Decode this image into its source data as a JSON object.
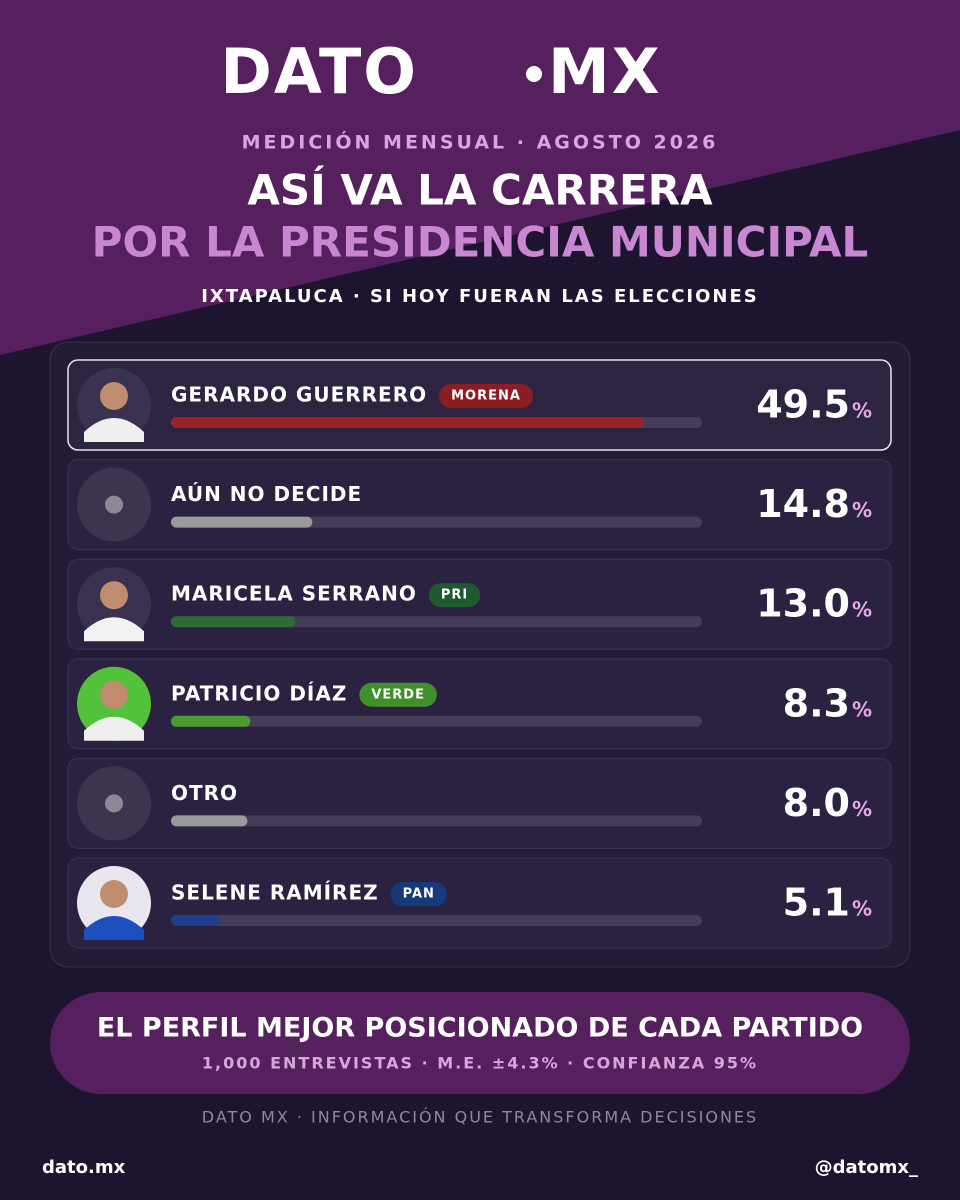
{
  "header": {
    "logo_left": "DATO",
    "logo_right": "MX",
    "subtitle": "MEDICIÓN MENSUAL · AGOSTO 2026",
    "title_line1": "ASÍ VA LA CARRERA",
    "title_line2": "POR LA PRESIDENCIA MUNICIPAL",
    "tagline": "IXTAPALUCA · SI HOY FUERAN LAS ELECCIONES"
  },
  "chart_data": {
    "type": "bar",
    "categories": [
      "GERARDO GUERRERO",
      "AÚN NO DECIDE",
      "MARICELA SERRANO",
      "PATRICIO DÍAZ",
      "OTRO",
      "SELENE RAMÍREZ"
    ],
    "parties": [
      "MORENA",
      null,
      "PRI",
      "VERDE",
      null,
      "PAN"
    ],
    "party_colors": [
      "#8c1d22",
      null,
      "#1f5a2f",
      "#3f8f2b",
      null,
      "#15397a"
    ],
    "values": [
      49.5,
      14.8,
      13.0,
      8.3,
      8.0,
      5.1
    ],
    "value_labels": [
      "49.5",
      "14.8",
      "13.0",
      "8.3",
      "8.0",
      "5.1"
    ],
    "unit": "%",
    "colors": [
      "#9b2226",
      "#9a9a9a",
      "#2d6b37",
      "#4b9c30",
      "#9a9a9a",
      "#1d3f8e"
    ],
    "xlim": [
      0,
      55.6
    ]
  },
  "footer": {
    "headline": "EL PERFIL MEJOR POSICIONADO DE CADA PARTIDO",
    "methodology": "1,000 ENTREVISTAS · M.E. ±4.3% · CONFIANZA 95%",
    "slogan": "DATO MX · INFORMACIÓN QUE TRANSFORMA DECISIONES",
    "website": "dato.mx",
    "handle": "@datomx_"
  }
}
